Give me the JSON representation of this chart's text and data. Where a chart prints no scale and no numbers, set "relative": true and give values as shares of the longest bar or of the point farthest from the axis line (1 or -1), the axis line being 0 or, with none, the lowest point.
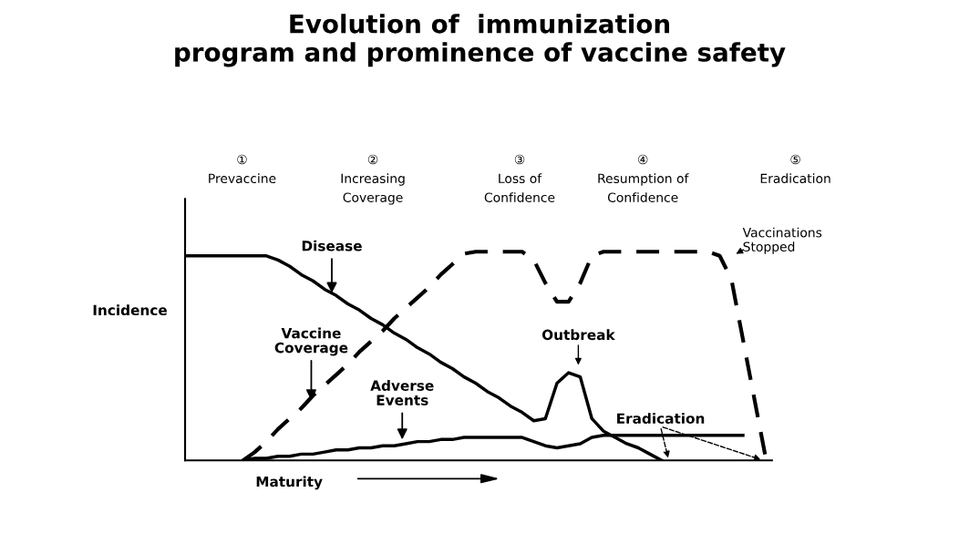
{
  "chart_data": {
    "type": "line",
    "title": "Evolution of  immunization\nprogram and prominence of vaccine safety",
    "xlabel": "Maturity",
    "ylabel": "Incidence",
    "relative": true,
    "grid": false,
    "marker": "none",
    "categories": [
      null,
      null,
      null,
      null,
      null,
      null,
      null,
      null,
      null,
      null,
      null,
      null,
      null,
      null,
      null,
      null,
      null,
      null,
      null,
      null,
      null,
      null,
      null,
      null,
      null,
      null,
      null,
      null,
      null,
      null,
      null,
      null,
      null,
      null,
      null,
      null,
      null,
      null,
      null,
      null,
      null,
      null,
      null,
      null,
      null,
      null,
      null,
      null,
      null,
      null,
      null
    ],
    "series": [
      {
        "name": "Disease",
        "color": "#000000",
        "line_style": "solid",
        "values": [
          0.98,
          0.98,
          0.98,
          0.98,
          0.98,
          0.98,
          0.98,
          0.98,
          0.96,
          0.93,
          0.89,
          0.86,
          0.82,
          0.79,
          0.75,
          0.72,
          0.68,
          0.65,
          0.61,
          0.58,
          0.54,
          0.51,
          0.47,
          0.44,
          0.4,
          0.37,
          0.33,
          0.3,
          0.26,
          0.23,
          0.19,
          0.2,
          0.37,
          0.42,
          0.4,
          0.2,
          0.14,
          0.11,
          0.08,
          0.06,
          0.03,
          0,
          null,
          null,
          null,
          null,
          null,
          null,
          null,
          null,
          null
        ]
      },
      {
        "name": "Vaccine Coverage",
        "color": "#000000",
        "line_style": "dashed",
        "values": [
          null,
          null,
          null,
          null,
          null,
          0,
          0.04,
          0.09,
          0.15,
          0.2,
          0.25,
          0.31,
          0.36,
          0.41,
          0.46,
          0.52,
          0.57,
          0.62,
          0.68,
          0.73,
          0.78,
          0.83,
          0.89,
          0.94,
          0.99,
          1,
          1,
          1,
          1,
          1,
          0.96,
          0.85,
          0.76,
          0.76,
          0.85,
          0.98,
          1,
          1,
          1,
          1,
          1,
          1,
          1,
          1,
          1,
          1,
          0.98,
          0.87,
          0.58,
          0.29,
          0
        ]
      },
      {
        "name": "Adverse Events",
        "color": "#000000",
        "line_style": "solid",
        "values": [
          null,
          null,
          null,
          null,
          null,
          0,
          0.01,
          0.01,
          0.02,
          0.02,
          0.03,
          0.03,
          0.04,
          0.05,
          0.05,
          0.06,
          0.06,
          0.07,
          0.07,
          0.08,
          0.09,
          0.09,
          0.1,
          0.1,
          0.11,
          0.11,
          0.11,
          0.11,
          0.11,
          0.11,
          0.09,
          0.07,
          0.06,
          0.07,
          0.08,
          0.11,
          0.12,
          0.12,
          0.12,
          0.12,
          0.12,
          0.12,
          0.12,
          0.12,
          0.12,
          0.12,
          0.12,
          0.12,
          0.12,
          null,
          null
        ]
      }
    ],
    "annotations": [
      "①\nPrevaccine",
      "②\nIncreasing\nCoverage",
      "③\nLoss of\nConfidence",
      "④\nResumption of\nConfidence",
      "⑤\nEradication",
      "Outbreak",
      "Eradication",
      "Vaccinations\nStopped"
    ]
  }
}
